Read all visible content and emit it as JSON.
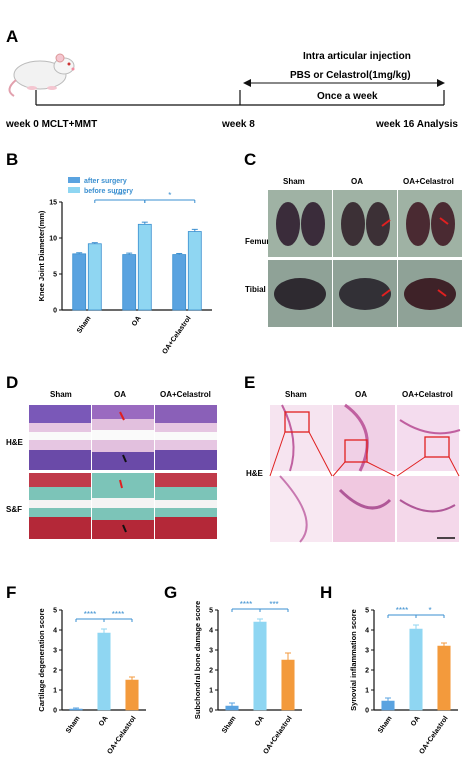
{
  "panels": {
    "A": {
      "letter": "A",
      "title": "Intra articular injection",
      "treatment": "PBS or Celastrol(1mg/kg)",
      "schedule": "Once a week",
      "t0": "week 0 MCLT+MMT",
      "t8": "week 8",
      "t16": "week 16 Analysis"
    },
    "C": {
      "letter": "C",
      "cols": [
        "Sham",
        "OA",
        "OA+Celastrol"
      ],
      "rows": [
        "Femur",
        "Tibial"
      ]
    },
    "D": {
      "letter": "D",
      "cols": [
        "Sham",
        "OA",
        "OA+Celastrol"
      ],
      "rows": [
        "H&E",
        "S&F"
      ]
    },
    "E": {
      "letter": "E",
      "cols": [
        "Sham",
        "OA",
        "OA+Celastrol"
      ],
      "rows": [
        "H&E"
      ]
    }
  },
  "colors": {
    "light_blue": "#8fd6f2",
    "blue": "#5aa3e0",
    "orange": "#f39a3c",
    "sig": "#3a8fd0"
  },
  "chart_data": [
    {
      "panel": "B",
      "type": "bar",
      "categories": [
        "Sham",
        "OA",
        "OA+Celastrol"
      ],
      "series": [
        {
          "name": "after surgery",
          "values": [
            7.8,
            7.7,
            7.7
          ],
          "errors": [
            0.15,
            0.2,
            0.15
          ]
        },
        {
          "name": "before surgery",
          "values": [
            9.2,
            11.9,
            10.9
          ],
          "errors": [
            0.15,
            0.3,
            0.3
          ]
        }
      ],
      "xlabel": "",
      "ylabel": "Knee Joint Diameter(mm)",
      "ylim": [
        0,
        15
      ],
      "yticks": [
        0,
        5,
        10,
        15
      ],
      "significance": [
        {
          "from": 1,
          "to": 3,
          "label": "****"
        },
        {
          "from": 3,
          "to": 5,
          "label": "*"
        }
      ],
      "legend": "top-left"
    },
    {
      "panel": "F",
      "type": "bar",
      "categories": [
        "Sham",
        "OA",
        "OA+Celastrol"
      ],
      "values": [
        0.05,
        3.85,
        1.5
      ],
      "errors": [
        0.05,
        0.2,
        0.15
      ],
      "bar_colors": [
        "#5aa3e0",
        "#8fd6f2",
        "#f39a3c"
      ],
      "ylabel": "Cartilage degeneration score",
      "ylim": [
        0,
        5
      ],
      "yticks": [
        0,
        1,
        2,
        3,
        4,
        5
      ],
      "significance": [
        {
          "from": 0,
          "to": 1,
          "label": "****"
        },
        {
          "from": 1,
          "to": 2,
          "label": "****"
        }
      ]
    },
    {
      "panel": "G",
      "type": "bar",
      "categories": [
        "Sham",
        "OA",
        "OA+Celastrol"
      ],
      "values": [
        0.2,
        4.4,
        2.5
      ],
      "errors": [
        0.15,
        0.15,
        0.35
      ],
      "bar_colors": [
        "#5aa3e0",
        "#8fd6f2",
        "#f39a3c"
      ],
      "ylabel": "Subchondral bone damage score",
      "ylim": [
        0,
        5
      ],
      "yticks": [
        0,
        1,
        2,
        3,
        4,
        5
      ],
      "significance": [
        {
          "from": 0,
          "to": 1,
          "label": "****"
        },
        {
          "from": 1,
          "to": 2,
          "label": "***"
        }
      ]
    },
    {
      "panel": "H",
      "type": "bar",
      "categories": [
        "Sham",
        "OA",
        "OA+Celastrol"
      ],
      "values": [
        0.45,
        4.05,
        3.2
      ],
      "errors": [
        0.15,
        0.2,
        0.15
      ],
      "bar_colors": [
        "#5aa3e0",
        "#8fd6f2",
        "#f39a3c"
      ],
      "ylabel": "Synovial inflammation score",
      "ylim": [
        0,
        5
      ],
      "yticks": [
        0,
        1,
        2,
        3,
        4,
        5
      ],
      "significance": [
        {
          "from": 0,
          "to": 1,
          "label": "****"
        },
        {
          "from": 1,
          "to": 2,
          "label": "*"
        }
      ]
    }
  ]
}
